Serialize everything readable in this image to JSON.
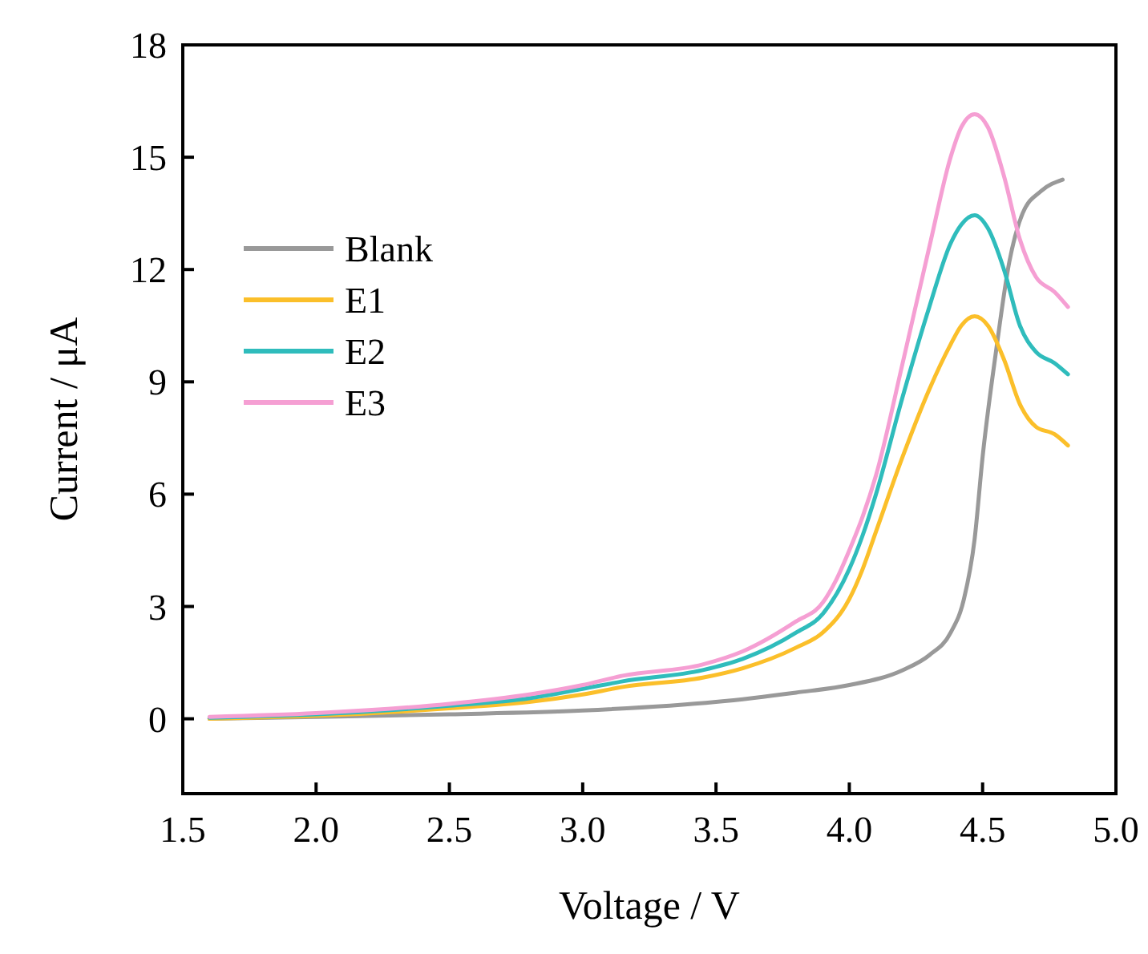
{
  "chart_data": {
    "type": "line",
    "xlabel": "Voltage / V",
    "ylabel": "Current / μA",
    "xlim": [
      1.5,
      5.0
    ],
    "xticks": [
      {
        "value": 1.5,
        "label": "1.5"
      },
      {
        "value": 2,
        "label": "2.0"
      },
      {
        "value": 2.5,
        "label": "2.5"
      },
      {
        "value": 3,
        "label": "3.0"
      },
      {
        "value": 3.5,
        "label": "3.5"
      },
      {
        "value": 4,
        "label": "4.0"
      },
      {
        "value": 4.5,
        "label": "4.5"
      },
      {
        "value": 5,
        "label": "5.0"
      }
    ],
    "ylim": [
      -2,
      18
    ],
    "yticks": [
      0,
      3,
      6,
      9,
      12,
      15,
      18
    ],
    "grid": false,
    "legend": "top left",
    "marker": "none",
    "line_style": "solid",
    "series": [
      {
        "name": "Blank",
        "color": "#999999",
        "x": [
          1.6,
          2.0,
          2.5,
          3.0,
          3.5,
          3.8,
          4.0,
          4.2,
          4.3,
          4.38,
          4.43,
          4.47,
          4.5,
          4.55,
          4.6,
          4.65,
          4.72,
          4.8
        ],
        "values": [
          0.0,
          0.05,
          0.12,
          0.22,
          0.45,
          0.7,
          0.9,
          1.3,
          1.7,
          2.3,
          3.2,
          4.8,
          7.0,
          9.8,
          12.2,
          13.5,
          14.1,
          14.4
        ]
      },
      {
        "name": "E1",
        "color": "#fbbf2a",
        "x": [
          1.6,
          2.0,
          2.5,
          2.8,
          3.0,
          3.15,
          3.45,
          3.6,
          3.8,
          3.9,
          4.0,
          4.05,
          4.1,
          4.2,
          4.3,
          4.38,
          4.42,
          4.47,
          4.52,
          4.58,
          4.64,
          4.7,
          4.77,
          4.82
        ],
        "values": [
          0.0,
          0.08,
          0.28,
          0.45,
          0.65,
          0.85,
          1.1,
          1.35,
          1.9,
          2.3,
          3.2,
          4.0,
          5.0,
          7.0,
          8.8,
          10.0,
          10.5,
          10.75,
          10.5,
          9.6,
          8.4,
          7.8,
          7.6,
          7.3
        ]
      },
      {
        "name": "E2",
        "color": "#2fbcbc",
        "x": [
          1.6,
          2.0,
          2.5,
          2.8,
          3.0,
          3.15,
          3.45,
          3.6,
          3.8,
          3.9,
          4.0,
          4.05,
          4.1,
          4.2,
          4.3,
          4.38,
          4.42,
          4.47,
          4.52,
          4.58,
          4.64,
          4.7,
          4.77,
          4.82
        ],
        "values": [
          0.03,
          0.12,
          0.35,
          0.55,
          0.8,
          1.0,
          1.3,
          1.6,
          2.3,
          2.8,
          4.0,
          4.9,
          6.0,
          8.6,
          11.0,
          12.7,
          13.2,
          13.45,
          13.1,
          12.0,
          10.5,
          9.8,
          9.5,
          9.2
        ]
      },
      {
        "name": "E3",
        "color": "#f59fd3",
        "x": [
          1.6,
          2.0,
          2.5,
          2.8,
          3.0,
          3.15,
          3.45,
          3.6,
          3.8,
          3.9,
          3.95,
          4.0,
          4.05,
          4.1,
          4.2,
          4.3,
          4.38,
          4.42,
          4.47,
          4.52,
          4.58,
          4.64,
          4.7,
          4.77,
          4.82
        ],
        "values": [
          0.05,
          0.15,
          0.4,
          0.65,
          0.9,
          1.15,
          1.45,
          1.8,
          2.6,
          3.1,
          3.7,
          4.5,
          5.4,
          6.5,
          9.5,
          12.6,
          15.0,
          15.8,
          16.15,
          15.8,
          14.5,
          12.8,
          11.8,
          11.4,
          11.0
        ]
      }
    ]
  }
}
